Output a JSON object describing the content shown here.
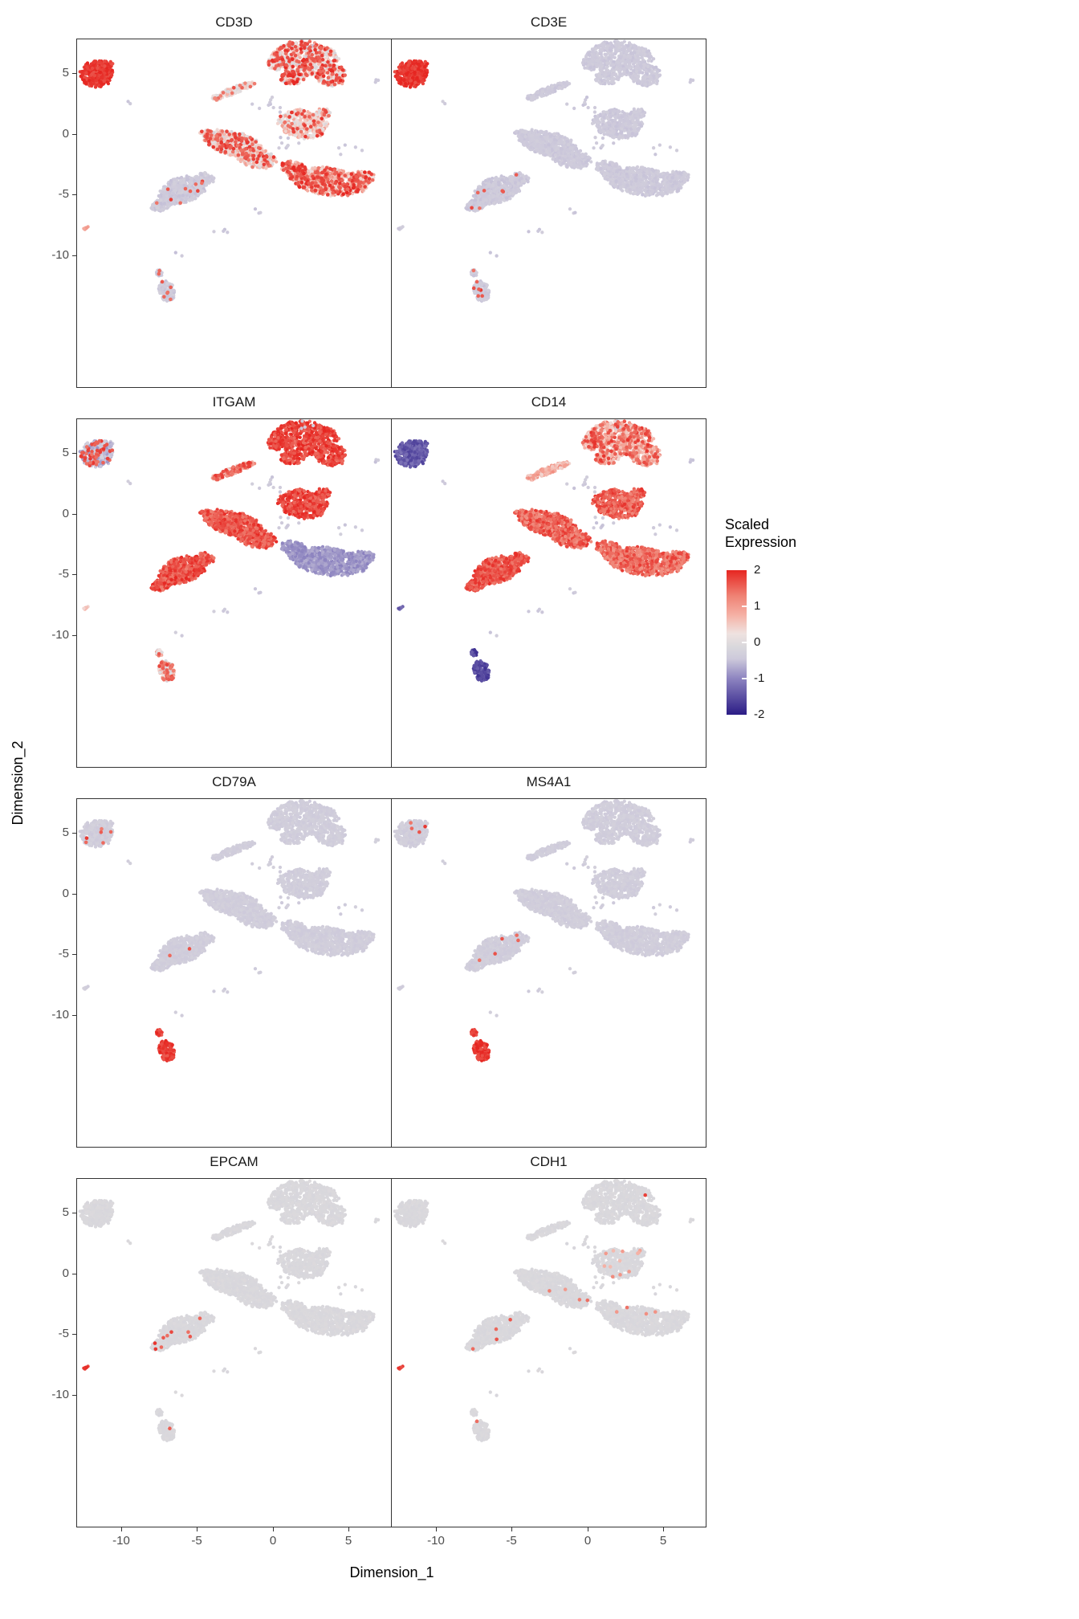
{
  "figure": {
    "xlabel": "Dimension_1",
    "ylabel": "Dimension_2",
    "legend": {
      "title": "Scaled Expression",
      "ticks": [
        2,
        1,
        0,
        -1,
        -2
      ]
    }
  },
  "chart_data": {
    "type": "scatter",
    "description": "Eight UMAP feature plot facets sharing one embedding (Dimension_1 vs Dimension_2); points are cells colored by scaled gene expression from -2 (dark purple) through ~0 (light gray-lavender) to 2 (red).",
    "panels": [
      {
        "gene": "CD3D"
      },
      {
        "gene": "CD3E"
      },
      {
        "gene": "ITGAM"
      },
      {
        "gene": "CD14"
      },
      {
        "gene": "CD79A"
      },
      {
        "gene": "MS4A1"
      },
      {
        "gene": "EPCAM"
      },
      {
        "gene": "CDH1"
      }
    ],
    "xlabel": "Dimension_1",
    "ylabel": "Dimension_2",
    "xlim": [
      -12.9,
      7.8
    ],
    "ylim": [
      -20.8,
      7.76
    ],
    "x_ticks": [
      -10,
      -5,
      0,
      5
    ],
    "y_ticks": [
      5,
      0,
      -5,
      -10
    ],
    "grid": false,
    "legend_position": "right",
    "color_stops": [
      [
        -2,
        "#2b1c86"
      ],
      [
        -1,
        "#8d84c0"
      ],
      [
        -0.45,
        "#cdc9db"
      ],
      [
        -0.12,
        "#d9d8dc"
      ],
      [
        0.25,
        "#efe2e0"
      ],
      [
        0.75,
        "#f5b2a6"
      ],
      [
        1.3,
        "#ef8173"
      ],
      [
        2,
        "#e62621"
      ]
    ],
    "clusters": [
      {
        "id": "tl",
        "seed": 11,
        "blobs": [
          {
            "cx": -11.6,
            "cy": 4.95,
            "rx": 1.05,
            "ry": 1.1,
            "rot": 0,
            "n": 330
          },
          {
            "cx": -12.1,
            "cy": 4.3,
            "rx": 0.3,
            "ry": 0.3,
            "rot": 0,
            "n": 25
          },
          {
            "cx": -10.9,
            "cy": 5.7,
            "rx": 0.35,
            "ry": 0.3,
            "rot": 0,
            "n": 25
          }
        ]
      },
      {
        "id": "tr",
        "seed": 22,
        "blobs": [
          {
            "cx": 2.1,
            "cy": 6.2,
            "rx": 2.2,
            "ry": 1.35,
            "rot": -5,
            "n": 520
          },
          {
            "cx": 3.9,
            "cy": 4.8,
            "rx": 1.05,
            "ry": 0.85,
            "rot": 0,
            "n": 170
          },
          {
            "cx": 1.3,
            "cy": 4.6,
            "rx": 0.75,
            "ry": 0.55,
            "rot": 0,
            "n": 90
          },
          {
            "cx": 0.2,
            "cy": 5.9,
            "rx": 0.55,
            "ry": 0.65,
            "rot": 0,
            "n": 60
          }
        ]
      },
      {
        "id": "streak",
        "seed": 33,
        "blobs": [
          {
            "cx": -2.5,
            "cy": 3.6,
            "rx": 1.45,
            "ry": 0.28,
            "rot": 26,
            "n": 130
          },
          {
            "cx": -3.7,
            "cy": 3.0,
            "rx": 0.3,
            "ry": 0.25,
            "rot": 0,
            "n": 30
          }
        ]
      },
      {
        "id": "sub",
        "seed": 44,
        "blobs": [
          {
            "cx": 2.0,
            "cy": 0.8,
            "rx": 1.6,
            "ry": 1.15,
            "rot": -10,
            "n": 380
          },
          {
            "cx": 3.3,
            "cy": 1.7,
            "rx": 0.5,
            "ry": 0.4,
            "rot": 0,
            "n": 50
          }
        ]
      },
      {
        "id": "cen",
        "seed": 55,
        "blobs": [
          {
            "cx": -2.6,
            "cy": -0.8,
            "rx": 1.9,
            "ry": 0.95,
            "rot": -18,
            "n": 470
          },
          {
            "cx": -1.1,
            "cy": -2.0,
            "rx": 1.3,
            "ry": 0.8,
            "rot": -15,
            "n": 260
          },
          {
            "cx": -4.2,
            "cy": -0.1,
            "rx": 0.6,
            "ry": 0.35,
            "rot": -20,
            "n": 60
          }
        ]
      },
      {
        "id": "ll",
        "seed": 66,
        "blobs": [
          {
            "cx": -5.9,
            "cy": -4.6,
            "rx": 1.6,
            "ry": 1.0,
            "rot": 25,
            "n": 420
          },
          {
            "cx": -7.3,
            "cy": -5.8,
            "rx": 0.75,
            "ry": 0.45,
            "rot": 25,
            "n": 110
          },
          {
            "cx": -4.5,
            "cy": -3.7,
            "rx": 0.7,
            "ry": 0.5,
            "rot": 0,
            "n": 80
          }
        ]
      },
      {
        "id": "re",
        "seed": 77,
        "blobs": [
          {
            "cx": 3.7,
            "cy": -3.9,
            "rx": 2.5,
            "ry": 1.1,
            "rot": -10,
            "n": 680
          },
          {
            "cx": 1.4,
            "cy": -2.9,
            "rx": 0.9,
            "ry": 0.6,
            "rot": -25,
            "n": 150
          },
          {
            "cx": 6.0,
            "cy": -3.6,
            "rx": 0.7,
            "ry": 0.55,
            "rot": 0,
            "n": 90
          }
        ]
      },
      {
        "id": "dot",
        "seed": 88,
        "blobs": [
          {
            "cx": -12.3,
            "cy": -7.7,
            "rx": 0.18,
            "ry": 0.18,
            "rot": 0,
            "n": 7
          }
        ]
      },
      {
        "id": "bot",
        "seed": 99,
        "blobs": [
          {
            "cx": -7.45,
            "cy": -11.4,
            "rx": 0.22,
            "ry": 0.3,
            "rot": 0,
            "n": 26
          },
          {
            "cx": -7.0,
            "cy": -12.9,
            "rx": 0.5,
            "ry": 0.85,
            "rot": 12,
            "n": 130
          }
        ]
      },
      {
        "id": "nz",
        "seed": 123,
        "blobs": [
          {
            "cx": -0.2,
            "cy": 2.3,
            "rx": 1.2,
            "ry": 0.8,
            "rot": 0,
            "n": 10
          },
          {
            "cx": 0.9,
            "cy": -0.9,
            "rx": 1.0,
            "ry": 0.8,
            "rot": 0,
            "n": 8
          },
          {
            "cx": 5.0,
            "cy": -1.4,
            "rx": 1.0,
            "ry": 0.5,
            "rot": 0,
            "n": 5
          },
          {
            "cx": -9.4,
            "cy": 2.6,
            "rx": 0.4,
            "ry": 0.3,
            "rot": 0,
            "n": 2
          },
          {
            "cx": -3.6,
            "cy": -7.9,
            "rx": 0.8,
            "ry": 0.4,
            "rot": 0,
            "n": 4
          },
          {
            "cx": -0.9,
            "cy": -6.3,
            "rx": 0.4,
            "ry": 0.3,
            "rot": 0,
            "n": 3
          },
          {
            "cx": 2.2,
            "cy": 7.3,
            "rx": 0.6,
            "ry": 0.35,
            "rot": 0,
            "n": 4
          },
          {
            "cx": -6.2,
            "cy": -9.8,
            "rx": 0.4,
            "ry": 0.3,
            "rot": 0,
            "n": 2
          },
          {
            "cx": 6.9,
            "cy": 4.4,
            "rx": 0.35,
            "ry": 0.5,
            "rot": 0,
            "n": 3
          }
        ]
      }
    ],
    "expression": {
      "CD3D": {
        "default": {
          "base": -0.42,
          "spread": 0.1
        },
        "tl": {
          "base": 1.85,
          "spread": 0.2
        },
        "tr": {
          "base": 0.4,
          "spread": 0.7,
          "hot": 0.25,
          "hotLevel": 2
        },
        "streak": {
          "base": 0.25,
          "spread": 0.5,
          "hot": 0.08,
          "hotLevel": 1.7
        },
        "sub": {
          "base": 0.45,
          "spread": 0.55,
          "hot": 0.12,
          "hotLevel": 1.9
        },
        "cen": {
          "base": 0.35,
          "spread": 0.6,
          "hot": 0.15,
          "hotLevel": 1.9
        },
        "ll": {
          "base": -0.4,
          "spread": 0.12,
          "hot": 0.015,
          "hotLevel": 1.9
        },
        "re": {
          "base": 0.8,
          "spread": 0.6,
          "hot": 0.22,
          "hotLevel": 2
        },
        "dot": {
          "base": 0.9,
          "spread": 0.2
        },
        "bot": {
          "base": -0.4,
          "spread": 0.12,
          "hot": 0.04,
          "hotLevel": 1.8
        }
      },
      "CD3E": {
        "default": {
          "base": -0.42,
          "spread": 0.08
        },
        "tl": {
          "base": 1.85,
          "spread": 0.2
        },
        "ll": {
          "base": -0.42,
          "spread": 0.1,
          "hot": 0.012,
          "hotLevel": 1.8
        },
        "bot": {
          "base": -0.42,
          "spread": 0.1,
          "hot": 0.03,
          "hotLevel": 1.9
        }
      },
      "ITGAM": {
        "default": {
          "base": -0.42,
          "spread": 0.1
        },
        "tl": {
          "base": -0.55,
          "spread": 0.35,
          "hot": 0.12,
          "hotLevel": 1.9
        },
        "tr": {
          "base": 1.75,
          "spread": 0.3
        },
        "streak": {
          "base": 0.9,
          "spread": 0.7,
          "hot": 0.25,
          "hotLevel": 1.9
        },
        "sub": {
          "base": 1.75,
          "spread": 0.3
        },
        "cen": {
          "base": 1.65,
          "spread": 0.35
        },
        "ll": {
          "base": 1.65,
          "spread": 0.35
        },
        "re": {
          "base": -0.85,
          "spread": 0.18
        },
        "dot": {
          "base": 0.6,
          "spread": 0.3
        },
        "bot": {
          "base": 0.4,
          "spread": 0.8,
          "hot": 0.25,
          "hotLevel": 1.8
        }
      },
      "CD14": {
        "default": {
          "base": -0.42,
          "spread": 0.1
        },
        "tl": {
          "base": -1.4,
          "spread": 0.25
        },
        "tr": {
          "base": 0.9,
          "spread": 0.6,
          "hot": 0.18,
          "hotLevel": 1.9
        },
        "streak": {
          "base": 0.8,
          "spread": 0.45
        },
        "sub": {
          "base": 1.55,
          "spread": 0.35
        },
        "cen": {
          "base": 1.5,
          "spread": 0.4
        },
        "ll": {
          "base": 1.65,
          "spread": 0.3
        },
        "re": {
          "base": 1.45,
          "spread": 0.4
        },
        "dot": {
          "base": -1.4,
          "spread": 0.2
        },
        "bot": {
          "base": -1.55,
          "spread": 0.25
        }
      },
      "CD79A": {
        "default": {
          "base": -0.35,
          "spread": 0.08
        },
        "tl": {
          "base": -0.35,
          "spread": 0.1,
          "hot": 0.015,
          "hotLevel": 1.9
        },
        "ll": {
          "base": -0.35,
          "spread": 0.08,
          "hot": 0.008,
          "hotLevel": 1.9
        },
        "bot": {
          "base": 1.8,
          "spread": 0.25
        }
      },
      "MS4A1": {
        "default": {
          "base": -0.35,
          "spread": 0.08
        },
        "tl": {
          "base": -0.35,
          "spread": 0.1,
          "hot": 0.02,
          "hotLevel": 1.9
        },
        "ll": {
          "base": -0.35,
          "spread": 0.08,
          "hot": 0.008,
          "hotLevel": 1.9
        },
        "bot": {
          "base": 1.85,
          "spread": 0.2
        }
      },
      "EPCAM": {
        "default": {
          "base": -0.12,
          "spread": 0.05
        },
        "tl": {
          "base": -0.12,
          "spread": 0.05,
          "hot": 0.003,
          "hotLevel": 1.9
        },
        "ll": {
          "base": -0.12,
          "spread": 0.05,
          "hot": 0.012,
          "hotLevel": 1.9
        },
        "dot": {
          "base": 1.85,
          "spread": 0.2
        },
        "bot": {
          "base": -0.12,
          "spread": 0.05,
          "hot": 0.01,
          "hotLevel": 1.9
        }
      },
      "CDH1": {
        "default": {
          "base": -0.12,
          "spread": 0.05
        },
        "tr": {
          "base": -0.12,
          "spread": 0.05,
          "hot": 0.006,
          "hotLevel": 1.9
        },
        "streak": {
          "base": -0.12,
          "spread": 0.05,
          "hot": 0.02,
          "hotLevel": 1.1
        },
        "sub": {
          "base": -0.12,
          "spread": 0.05,
          "hot": 0.02,
          "hotLevel": 1.2
        },
        "cen": {
          "base": -0.12,
          "spread": 0.05,
          "hot": 0.004,
          "hotLevel": 1.5
        },
        "ll": {
          "base": -0.12,
          "spread": 0.05,
          "hot": 0.008,
          "hotLevel": 1.8
        },
        "re": {
          "base": -0.12,
          "spread": 0.05,
          "hot": 0.002,
          "hotLevel": 1.5
        },
        "dot": {
          "base": 1.85,
          "spread": 0.2
        },
        "bot": {
          "base": -0.12,
          "spread": 0.05,
          "hot": 0.012,
          "hotLevel": 1.9
        }
      }
    }
  }
}
